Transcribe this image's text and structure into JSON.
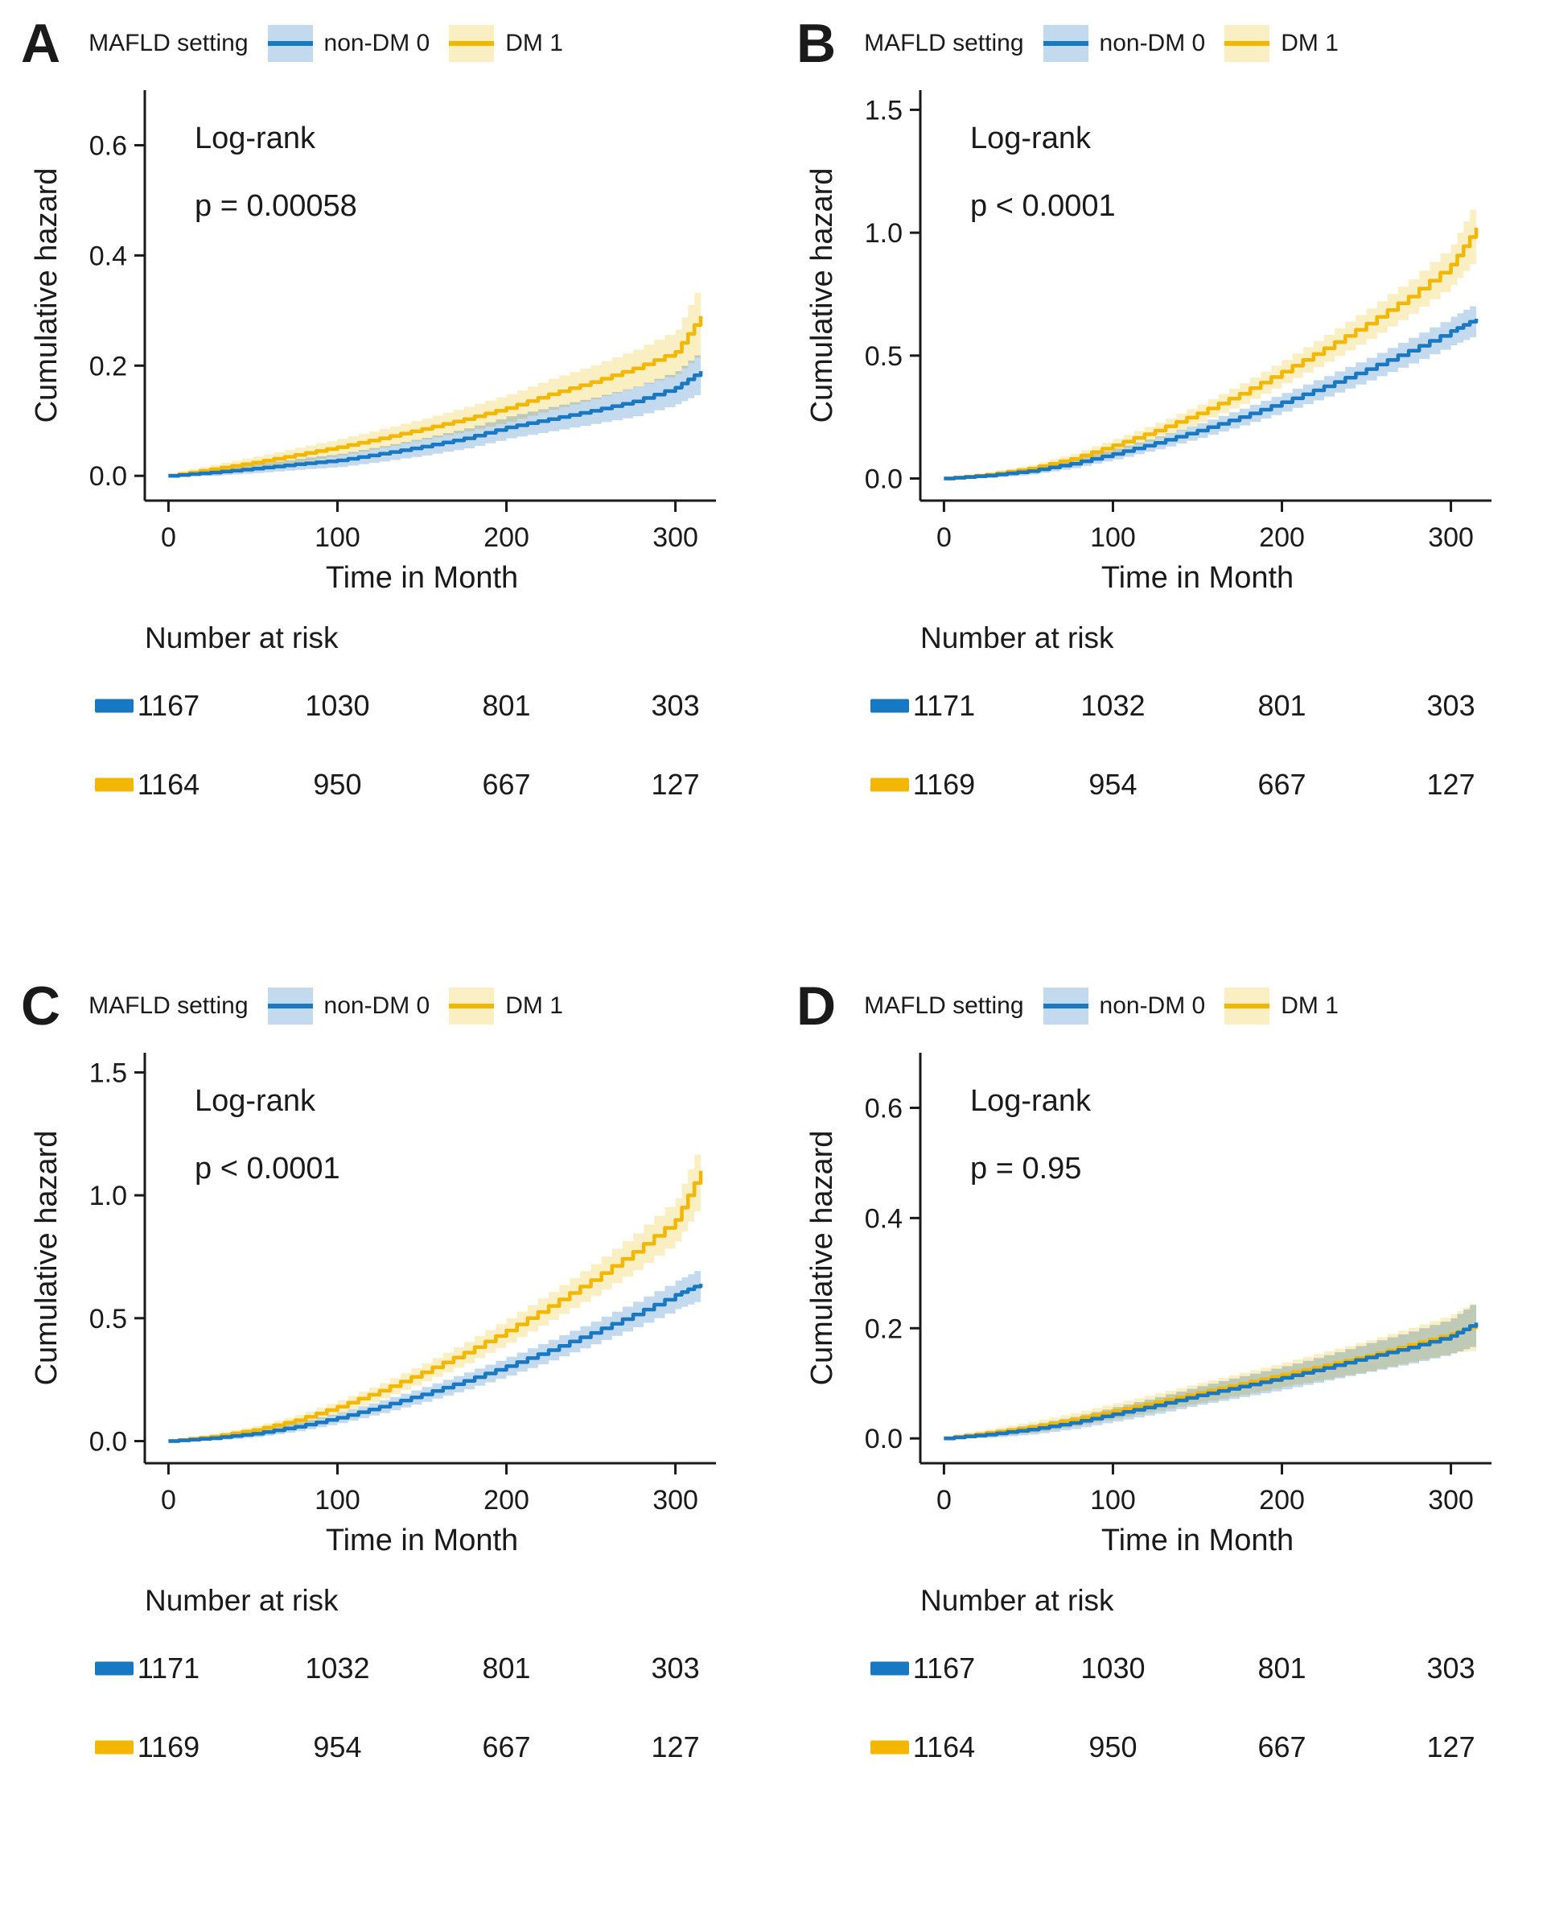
{
  "chart_data": [
    {
      "id": "A",
      "type": "line",
      "xlabel": "Time in Month",
      "ylabel": "Cumulative hazard",
      "annotation": {
        "lines": [
          "Log-rank",
          "p = 0.00058"
        ]
      },
      "legend": {
        "title": "MAFLD setting",
        "entries": [
          {
            "label": "non-DM 0",
            "color": "#1878c2",
            "band": "#c3d9ee"
          },
          {
            "label": "DM 1",
            "color": "#f3b700",
            "band": "#faeec3"
          }
        ]
      },
      "xlim": [
        -14,
        324
      ],
      "ylim": [
        -0.045,
        0.7
      ],
      "xticks": [
        0,
        100,
        200,
        300
      ],
      "yticks": [
        0,
        0.2,
        0.4,
        0.6
      ],
      "ytick_labels": [
        "0.0",
        "0.2",
        "0.4",
        "0.6"
      ],
      "x": [
        0,
        25,
        50,
        75,
        100,
        125,
        150,
        175,
        200,
        225,
        250,
        275,
        300,
        315
      ],
      "series": [
        {
          "name": "non-DM 0",
          "values": [
            0,
            0.006,
            0.013,
            0.021,
            0.028,
            0.04,
            0.053,
            0.068,
            0.088,
            0.103,
            0.118,
            0.135,
            0.16,
            0.19
          ],
          "ci": [
            0.004,
            0.006,
            0.008,
            0.01,
            0.012,
            0.014,
            0.016,
            0.018,
            0.02,
            0.022,
            0.024,
            0.027,
            0.03,
            0.038
          ]
        },
        {
          "name": "DM 1",
          "values": [
            0,
            0.012,
            0.024,
            0.038,
            0.052,
            0.068,
            0.085,
            0.103,
            0.123,
            0.148,
            0.17,
            0.195,
            0.225,
            0.29
          ],
          "ci": [
            0.005,
            0.008,
            0.011,
            0.013,
            0.015,
            0.017,
            0.019,
            0.022,
            0.025,
            0.028,
            0.031,
            0.034,
            0.04,
            0.065
          ]
        }
      ],
      "number_at_risk": {
        "title": "Number at risk",
        "rows": [
          {
            "series": "non-DM 0",
            "counts": [
              "1167",
              "1030",
              "801",
              "303"
            ]
          },
          {
            "series": "DM 1",
            "counts": [
              "1164",
              "950",
              "667",
              "127"
            ]
          }
        ]
      }
    },
    {
      "id": "B",
      "type": "line",
      "xlabel": "Time in Month",
      "ylabel": "Cumulative hazard",
      "annotation": {
        "lines": [
          "Log-rank",
          "p < 0.0001"
        ]
      },
      "legend": {
        "title": "MAFLD setting",
        "entries": [
          {
            "label": "non-DM 0",
            "color": "#1878c2",
            "band": "#c3d9ee"
          },
          {
            "label": "DM 1",
            "color": "#f3b700",
            "band": "#faeec3"
          }
        ]
      },
      "xlim": [
        -14,
        324
      ],
      "ylim": [
        -0.09,
        1.58
      ],
      "xticks": [
        0,
        100,
        200,
        300
      ],
      "yticks": [
        0,
        0.5,
        1.0,
        1.5
      ],
      "ytick_labels": [
        "0.0",
        "0.5",
        "1.0",
        "1.5"
      ],
      "x": [
        0,
        25,
        50,
        75,
        100,
        125,
        150,
        175,
        200,
        225,
        250,
        275,
        300,
        315
      ],
      "series": [
        {
          "name": "non-DM 0",
          "values": [
            0,
            0.012,
            0.03,
            0.06,
            0.1,
            0.145,
            0.195,
            0.25,
            0.31,
            0.375,
            0.445,
            0.52,
            0.6,
            0.65
          ],
          "ci": [
            0.006,
            0.01,
            0.014,
            0.018,
            0.022,
            0.026,
            0.03,
            0.034,
            0.038,
            0.042,
            0.046,
            0.052,
            0.058,
            0.065
          ]
        },
        {
          "name": "DM 1",
          "values": [
            0,
            0.015,
            0.04,
            0.08,
            0.135,
            0.195,
            0.265,
            0.345,
            0.435,
            0.53,
            0.63,
            0.74,
            0.87,
            1.02
          ],
          "ci": [
            0.006,
            0.011,
            0.016,
            0.021,
            0.026,
            0.031,
            0.036,
            0.042,
            0.048,
            0.055,
            0.062,
            0.07,
            0.082,
            0.12
          ]
        }
      ],
      "number_at_risk": {
        "title": "Number at risk",
        "rows": [
          {
            "series": "non-DM 0",
            "counts": [
              "1171",
              "1032",
              "801",
              "303"
            ]
          },
          {
            "series": "DM 1",
            "counts": [
              "1169",
              "954",
              "667",
              "127"
            ]
          }
        ]
      }
    },
    {
      "id": "C",
      "type": "line",
      "xlabel": "Time in Month",
      "ylabel": "Cumulative hazard",
      "annotation": {
        "lines": [
          "Log-rank",
          "p < 0.0001"
        ]
      },
      "legend": {
        "title": "MAFLD setting",
        "entries": [
          {
            "label": "non-DM 0",
            "color": "#1878c2",
            "band": "#c3d9ee"
          },
          {
            "label": "DM 1",
            "color": "#f3b700",
            "band": "#faeec3"
          }
        ]
      },
      "xlim": [
        -14,
        324
      ],
      "ylim": [
        -0.09,
        1.58
      ],
      "xticks": [
        0,
        100,
        200,
        300
      ],
      "yticks": [
        0,
        0.5,
        1.0,
        1.5
      ],
      "ytick_labels": [
        "0.0",
        "0.5",
        "1.0",
        "1.5"
      ],
      "x": [
        0,
        25,
        50,
        75,
        100,
        125,
        150,
        175,
        200,
        225,
        250,
        275,
        300,
        315
      ],
      "series": [
        {
          "name": "non-DM 0",
          "values": [
            0,
            0.012,
            0.03,
            0.058,
            0.095,
            0.14,
            0.19,
            0.245,
            0.305,
            0.37,
            0.44,
            0.515,
            0.595,
            0.64
          ],
          "ci": [
            0.006,
            0.01,
            0.014,
            0.018,
            0.022,
            0.026,
            0.03,
            0.034,
            0.038,
            0.042,
            0.046,
            0.052,
            0.058,
            0.065
          ]
        },
        {
          "name": "DM 1",
          "values": [
            0,
            0.018,
            0.045,
            0.085,
            0.14,
            0.205,
            0.28,
            0.36,
            0.45,
            0.55,
            0.655,
            0.77,
            0.9,
            1.1
          ],
          "ci": [
            0.006,
            0.011,
            0.016,
            0.021,
            0.026,
            0.031,
            0.037,
            0.043,
            0.05,
            0.057,
            0.065,
            0.075,
            0.088,
            0.125
          ]
        }
      ],
      "number_at_risk": {
        "title": "Number at risk",
        "rows": [
          {
            "series": "non-DM 0",
            "counts": [
              "1171",
              "1032",
              "801",
              "303"
            ]
          },
          {
            "series": "DM 1",
            "counts": [
              "1169",
              "954",
              "667",
              "127"
            ]
          }
        ]
      }
    },
    {
      "id": "D",
      "type": "line",
      "xlabel": "Time in Month",
      "ylabel": "Cumulative hazard",
      "annotation": {
        "lines": [
          "Log-rank",
          "p = 0.95"
        ]
      },
      "legend": {
        "title": "MAFLD setting",
        "entries": [
          {
            "label": "non-DM 0",
            "color": "#1878c2",
            "band": "#c3d9ee"
          },
          {
            "label": "DM 1",
            "color": "#f3b700",
            "band": "#faeec3"
          }
        ]
      },
      "xlim": [
        -14,
        324
      ],
      "ylim": [
        -0.045,
        0.7
      ],
      "xticks": [
        0,
        100,
        200,
        300
      ],
      "yticks": [
        0,
        0.2,
        0.4,
        0.6
      ],
      "ytick_labels": [
        "0.0",
        "0.2",
        "0.4",
        "0.6"
      ],
      "x": [
        0,
        25,
        50,
        75,
        100,
        125,
        150,
        175,
        200,
        225,
        250,
        275,
        300,
        315
      ],
      "series": [
        {
          "name": "non-DM 0",
          "values": [
            0,
            0.007,
            0.016,
            0.028,
            0.044,
            0.06,
            0.078,
            0.094,
            0.11,
            0.128,
            0.147,
            0.165,
            0.186,
            0.21
          ],
          "ci": [
            0.004,
            0.006,
            0.009,
            0.011,
            0.013,
            0.015,
            0.017,
            0.019,
            0.021,
            0.023,
            0.026,
            0.029,
            0.032,
            0.04
          ]
        },
        {
          "name": "DM 1",
          "values": [
            0,
            0.01,
            0.02,
            0.034,
            0.05,
            0.066,
            0.083,
            0.099,
            0.116,
            0.133,
            0.15,
            0.17,
            0.19,
            0.205
          ],
          "ci": [
            0.005,
            0.007,
            0.01,
            0.012,
            0.014,
            0.016,
            0.018,
            0.02,
            0.022,
            0.025,
            0.028,
            0.031,
            0.035,
            0.045
          ]
        }
      ],
      "number_at_risk": {
        "title": "Number at risk",
        "rows": [
          {
            "series": "non-DM 0",
            "counts": [
              "1167",
              "1030",
              "801",
              "303"
            ]
          },
          {
            "series": "DM 1",
            "counts": [
              "1164",
              "950",
              "667",
              "127"
            ]
          }
        ]
      }
    }
  ]
}
